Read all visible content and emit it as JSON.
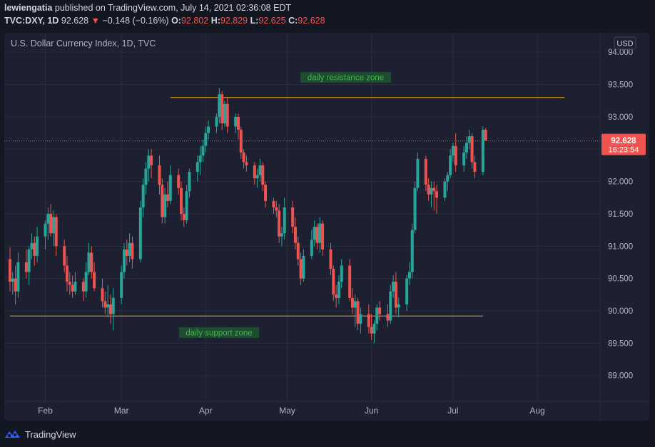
{
  "header": {
    "user": "lewiengatia",
    "published_text": "published on TradingView.com, July 14, 2021 02:36:08 EDT",
    "symbol": "TVC:DXY, 1D",
    "last": "92.628",
    "change": "−0.148 (−0.16%)",
    "o_label": "O:",
    "o_value": "92.802",
    "h_label": "H:",
    "h_value": "92.829",
    "l_label": "L:",
    "l_value": "92.625",
    "c_label": "C:",
    "c_value": "92.628"
  },
  "footer": {
    "brand": "TradingView",
    "logo_icon": "tradingview-logo-icon"
  },
  "colors": {
    "background": "#131722",
    "pane": "#1c2030",
    "grid": "#2a2e39",
    "up": "#26a69a",
    "down": "#ef5350",
    "level_line": "#f7a525",
    "zone_label_bg": "#1b4d2e",
    "zone_label_text": "#4caf50"
  },
  "chart_data": {
    "type": "candlestick",
    "title": "U.S. Dollar Currency Index, 1D, TVC",
    "currency": "USD",
    "y_ticks": [
      "94.000",
      "93.500",
      "93.000",
      "92.500",
      "92.000",
      "91.500",
      "91.000",
      "90.500",
      "90.000",
      "89.500",
      "89.000"
    ],
    "x_ticks": [
      {
        "label": "Feb",
        "date": "2021-02-01"
      },
      {
        "label": "Mar",
        "date": "2021-03-01"
      },
      {
        "label": "Apr",
        "date": "2021-04-01"
      },
      {
        "label": "May",
        "date": "2021-05-01"
      },
      {
        "label": "Jun",
        "date": "2021-06-01"
      },
      {
        "label": "Jul",
        "date": "2021-07-01"
      },
      {
        "label": "Aug",
        "date": "2021-08-01"
      }
    ],
    "ylim": [
      88.6,
      94.3
    ],
    "xlim": [
      "2021-01-19",
      "2021-08-22"
    ],
    "last_price": {
      "value": 92.628,
      "label": "92.628",
      "countdown": "16:23:54"
    },
    "resistance": {
      "label": "daily resistance zone",
      "value": 93.3,
      "from": "2021-03-19",
      "to": "2021-08-11"
    },
    "support": {
      "label": "daily support zone",
      "value": 89.92,
      "from": "2021-01-19",
      "to": "2021-07-12"
    },
    "candles": [
      {
        "d": "2021-01-19",
        "o": 90.8,
        "h": 90.98,
        "l": 90.3,
        "c": 90.45
      },
      {
        "d": "2021-01-20",
        "o": 90.45,
        "h": 90.6,
        "l": 90.25,
        "c": 90.5
      },
      {
        "d": "2021-01-21",
        "o": 90.5,
        "h": 90.7,
        "l": 90.1,
        "c": 90.3
      },
      {
        "d": "2021-01-22",
        "o": 90.3,
        "h": 90.9,
        "l": 90.2,
        "c": 90.75
      },
      {
        "d": "2021-01-25",
        "o": 90.75,
        "h": 90.95,
        "l": 90.5,
        "c": 90.6
      },
      {
        "d": "2021-01-26",
        "o": 90.6,
        "h": 91.0,
        "l": 90.4,
        "c": 90.95
      },
      {
        "d": "2021-01-27",
        "o": 90.95,
        "h": 91.2,
        "l": 90.8,
        "c": 91.05
      },
      {
        "d": "2021-01-28",
        "o": 91.05,
        "h": 91.15,
        "l": 90.7,
        "c": 90.85
      },
      {
        "d": "2021-01-29",
        "o": 90.85,
        "h": 91.3,
        "l": 90.75,
        "c": 91.15
      },
      {
        "d": "2021-02-01",
        "o": 91.15,
        "h": 91.4,
        "l": 90.95,
        "c": 91.35
      },
      {
        "d": "2021-02-02",
        "o": 91.35,
        "h": 91.6,
        "l": 91.1,
        "c": 91.5
      },
      {
        "d": "2021-02-03",
        "o": 91.5,
        "h": 91.65,
        "l": 91.15,
        "c": 91.2
      },
      {
        "d": "2021-02-04",
        "o": 91.2,
        "h": 91.55,
        "l": 91.0,
        "c": 91.45
      },
      {
        "d": "2021-02-05",
        "o": 91.45,
        "h": 91.5,
        "l": 90.85,
        "c": 91.0
      },
      {
        "d": "2021-02-08",
        "o": 91.0,
        "h": 91.1,
        "l": 90.6,
        "c": 90.7
      },
      {
        "d": "2021-02-09",
        "o": 90.7,
        "h": 90.85,
        "l": 90.3,
        "c": 90.45
      },
      {
        "d": "2021-02-10",
        "o": 90.45,
        "h": 90.6,
        "l": 90.25,
        "c": 90.4
      },
      {
        "d": "2021-02-11",
        "o": 90.4,
        "h": 90.55,
        "l": 90.2,
        "c": 90.3
      },
      {
        "d": "2021-02-12",
        "o": 90.3,
        "h": 90.6,
        "l": 90.25,
        "c": 90.45
      },
      {
        "d": "2021-02-15",
        "o": 90.45,
        "h": 90.5,
        "l": 90.15,
        "c": 90.3
      },
      {
        "d": "2021-02-16",
        "o": 90.3,
        "h": 90.75,
        "l": 90.2,
        "c": 90.6
      },
      {
        "d": "2021-02-17",
        "o": 90.6,
        "h": 91.05,
        "l": 90.55,
        "c": 90.9
      },
      {
        "d": "2021-02-18",
        "o": 90.9,
        "h": 91.0,
        "l": 90.5,
        "c": 90.6
      },
      {
        "d": "2021-02-19",
        "o": 90.6,
        "h": 90.75,
        "l": 90.3,
        "c": 90.35
      },
      {
        "d": "2021-02-22",
        "o": 90.35,
        "h": 90.5,
        "l": 90.05,
        "c": 90.15
      },
      {
        "d": "2021-02-23",
        "o": 90.15,
        "h": 90.3,
        "l": 89.95,
        "c": 90.05
      },
      {
        "d": "2021-02-24",
        "o": 90.05,
        "h": 90.4,
        "l": 89.9,
        "c": 90.1
      },
      {
        "d": "2021-02-25",
        "o": 90.1,
        "h": 90.25,
        "l": 89.8,
        "c": 89.95
      },
      {
        "d": "2021-02-26",
        "o": 89.95,
        "h": 90.35,
        "l": 89.7,
        "c": 90.2
      },
      {
        "d": "2021-03-01",
        "o": 90.2,
        "h": 90.7,
        "l": 90.1,
        "c": 90.6
      },
      {
        "d": "2021-03-02",
        "o": 90.6,
        "h": 91.05,
        "l": 90.5,
        "c": 90.95
      },
      {
        "d": "2021-03-03",
        "o": 90.95,
        "h": 91.1,
        "l": 90.7,
        "c": 90.85
      },
      {
        "d": "2021-03-04",
        "o": 90.85,
        "h": 91.2,
        "l": 90.75,
        "c": 91.05
      },
      {
        "d": "2021-03-05",
        "o": 91.05,
        "h": 91.15,
        "l": 90.65,
        "c": 90.8
      },
      {
        "d": "2021-03-08",
        "o": 90.8,
        "h": 91.7,
        "l": 90.75,
        "c": 91.6
      },
      {
        "d": "2021-03-09",
        "o": 91.6,
        "h": 92.05,
        "l": 91.45,
        "c": 91.95
      },
      {
        "d": "2021-03-10",
        "o": 91.95,
        "h": 92.3,
        "l": 91.8,
        "c": 92.2
      },
      {
        "d": "2021-03-11",
        "o": 92.2,
        "h": 92.5,
        "l": 92.0,
        "c": 92.4
      },
      {
        "d": "2021-03-12",
        "o": 92.4,
        "h": 92.5,
        "l": 92.05,
        "c": 92.25
      },
      {
        "d": "2021-03-15",
        "o": 92.25,
        "h": 92.4,
        "l": 91.8,
        "c": 91.95
      },
      {
        "d": "2021-03-16",
        "o": 91.95,
        "h": 92.05,
        "l": 91.35,
        "c": 91.45
      },
      {
        "d": "2021-03-17",
        "o": 91.45,
        "h": 91.9,
        "l": 91.35,
        "c": 91.8
      },
      {
        "d": "2021-03-18",
        "o": 91.8,
        "h": 92.0,
        "l": 91.6,
        "c": 91.7
      },
      {
        "d": "2021-03-19",
        "o": 91.7,
        "h": 92.25,
        "l": 91.65,
        "c": 92.1
      },
      {
        "d": "2021-03-22",
        "o": 92.1,
        "h": 92.2,
        "l": 91.8,
        "c": 91.9
      },
      {
        "d": "2021-03-23",
        "o": 91.9,
        "h": 92.0,
        "l": 91.4,
        "c": 91.5
      },
      {
        "d": "2021-03-24",
        "o": 91.5,
        "h": 91.6,
        "l": 91.3,
        "c": 91.4
      },
      {
        "d": "2021-03-25",
        "o": 91.4,
        "h": 91.95,
        "l": 91.35,
        "c": 91.85
      },
      {
        "d": "2021-03-26",
        "o": 91.85,
        "h": 92.2,
        "l": 91.75,
        "c": 92.15
      },
      {
        "d": "2021-03-29",
        "o": 92.15,
        "h": 92.4,
        "l": 92.0,
        "c": 92.3
      },
      {
        "d": "2021-03-30",
        "o": 92.3,
        "h": 92.55,
        "l": 92.1,
        "c": 92.4
      },
      {
        "d": "2021-03-31",
        "o": 92.4,
        "h": 92.65,
        "l": 92.3,
        "c": 92.55
      },
      {
        "d": "2021-04-01",
        "o": 92.55,
        "h": 92.85,
        "l": 92.45,
        "c": 92.75
      },
      {
        "d": "2021-04-02",
        "o": 92.75,
        "h": 92.95,
        "l": 92.65,
        "c": 92.85
      },
      {
        "d": "2021-04-05",
        "o": 92.85,
        "h": 93.05,
        "l": 92.75,
        "c": 93.0
      },
      {
        "d": "2021-04-06",
        "o": 93.0,
        "h": 93.45,
        "l": 92.9,
        "c": 93.35
      },
      {
        "d": "2021-04-07",
        "o": 93.35,
        "h": 93.4,
        "l": 92.8,
        "c": 92.9
      },
      {
        "d": "2021-04-08",
        "o": 92.9,
        "h": 93.25,
        "l": 92.85,
        "c": 93.2
      },
      {
        "d": "2021-04-09",
        "o": 93.2,
        "h": 93.3,
        "l": 92.75,
        "c": 92.85
      },
      {
        "d": "2021-04-12",
        "o": 92.85,
        "h": 93.05,
        "l": 92.75,
        "c": 93.0
      },
      {
        "d": "2021-04-13",
        "o": 93.0,
        "h": 93.05,
        "l": 92.65,
        "c": 92.8
      },
      {
        "d": "2021-04-14",
        "o": 92.8,
        "h": 92.85,
        "l": 92.35,
        "c": 92.45
      },
      {
        "d": "2021-04-15",
        "o": 92.45,
        "h": 92.5,
        "l": 92.2,
        "c": 92.3
      },
      {
        "d": "2021-04-16",
        "o": 92.3,
        "h": 92.4,
        "l": 92.15,
        "c": 92.25
      },
      {
        "d": "2021-04-19",
        "o": 92.25,
        "h": 92.3,
        "l": 91.95,
        "c": 92.05
      },
      {
        "d": "2021-04-20",
        "o": 92.05,
        "h": 92.2,
        "l": 91.9,
        "c": 92.1
      },
      {
        "d": "2021-04-21",
        "o": 92.1,
        "h": 92.35,
        "l": 92.0,
        "c": 92.25
      },
      {
        "d": "2021-04-22",
        "o": 92.25,
        "h": 92.3,
        "l": 91.85,
        "c": 91.95
      },
      {
        "d": "2021-04-23",
        "o": 91.95,
        "h": 92.0,
        "l": 91.6,
        "c": 91.7
      },
      {
        "d": "2021-04-26",
        "o": 91.7,
        "h": 91.75,
        "l": 91.5,
        "c": 91.6
      },
      {
        "d": "2021-04-27",
        "o": 91.6,
        "h": 91.7,
        "l": 91.45,
        "c": 91.55
      },
      {
        "d": "2021-04-28",
        "o": 91.55,
        "h": 91.65,
        "l": 91.05,
        "c": 91.15
      },
      {
        "d": "2021-04-29",
        "o": 91.15,
        "h": 91.3,
        "l": 91.0,
        "c": 91.2
      },
      {
        "d": "2021-04-30",
        "o": 91.2,
        "h": 91.75,
        "l": 91.1,
        "c": 91.6
      },
      {
        "d": "2021-05-03",
        "o": 91.6,
        "h": 91.7,
        "l": 91.2,
        "c": 91.3
      },
      {
        "d": "2021-05-04",
        "o": 91.3,
        "h": 91.45,
        "l": 90.95,
        "c": 91.05
      },
      {
        "d": "2021-05-05",
        "o": 91.05,
        "h": 91.15,
        "l": 90.7,
        "c": 90.8
      },
      {
        "d": "2021-05-06",
        "o": 90.8,
        "h": 90.9,
        "l": 90.4,
        "c": 90.5
      },
      {
        "d": "2021-05-07",
        "o": 90.5,
        "h": 90.95,
        "l": 90.45,
        "c": 90.85
      },
      {
        "d": "2021-05-10",
        "o": 90.85,
        "h": 91.25,
        "l": 90.8,
        "c": 91.1
      },
      {
        "d": "2021-05-11",
        "o": 91.1,
        "h": 91.4,
        "l": 91.0,
        "c": 91.3
      },
      {
        "d": "2021-05-12",
        "o": 91.3,
        "h": 91.35,
        "l": 90.95,
        "c": 91.05
      },
      {
        "d": "2021-05-13",
        "o": 91.05,
        "h": 91.45,
        "l": 90.9,
        "c": 91.35
      },
      {
        "d": "2021-05-14",
        "o": 91.35,
        "h": 91.4,
        "l": 90.85,
        "c": 90.95
      },
      {
        "d": "2021-05-17",
        "o": 90.95,
        "h": 91.05,
        "l": 90.55,
        "c": 90.65
      },
      {
        "d": "2021-05-18",
        "o": 90.65,
        "h": 90.7,
        "l": 90.15,
        "c": 90.25
      },
      {
        "d": "2021-05-19",
        "o": 90.25,
        "h": 90.4,
        "l": 90.05,
        "c": 90.2
      },
      {
        "d": "2021-05-20",
        "o": 90.2,
        "h": 90.55,
        "l": 90.1,
        "c": 90.45
      },
      {
        "d": "2021-05-21",
        "o": 90.45,
        "h": 90.8,
        "l": 90.35,
        "c": 90.7
      },
      {
        "d": "2021-05-24",
        "o": 90.7,
        "h": 90.8,
        "l": 90.15,
        "c": 90.2
      },
      {
        "d": "2021-05-25",
        "o": 90.2,
        "h": 90.35,
        "l": 89.95,
        "c": 90.05
      },
      {
        "d": "2021-05-26",
        "o": 90.05,
        "h": 90.25,
        "l": 89.75,
        "c": 90.15
      },
      {
        "d": "2021-05-27",
        "o": 90.15,
        "h": 90.2,
        "l": 89.7,
        "c": 89.8
      },
      {
        "d": "2021-05-28",
        "o": 89.8,
        "h": 90.05,
        "l": 89.65,
        "c": 89.95
      },
      {
        "d": "2021-05-31",
        "o": 89.95,
        "h": 90.1,
        "l": 89.65,
        "c": 89.75
      },
      {
        "d": "2021-06-01",
        "o": 89.75,
        "h": 89.95,
        "l": 89.55,
        "c": 89.65
      },
      {
        "d": "2021-06-02",
        "o": 89.65,
        "h": 89.85,
        "l": 89.5,
        "c": 89.8
      },
      {
        "d": "2021-06-03",
        "o": 89.8,
        "h": 90.1,
        "l": 89.7,
        "c": 90.05
      },
      {
        "d": "2021-06-04",
        "o": 90.05,
        "h": 90.15,
        "l": 89.85,
        "c": 89.95
      },
      {
        "d": "2021-06-07",
        "o": 89.95,
        "h": 90.1,
        "l": 89.75,
        "c": 89.85
      },
      {
        "d": "2021-06-08",
        "o": 89.85,
        "h": 90.4,
        "l": 89.8,
        "c": 90.3
      },
      {
        "d": "2021-06-09",
        "o": 90.3,
        "h": 90.55,
        "l": 90.2,
        "c": 90.45
      },
      {
        "d": "2021-06-10",
        "o": 90.45,
        "h": 90.6,
        "l": 89.95,
        "c": 90.05
      },
      {
        "d": "2021-06-11",
        "o": 90.05,
        "h": 90.2,
        "l": 89.9,
        "c": 90.1
      },
      {
        "d": "2021-06-14",
        "o": 90.1,
        "h": 90.55,
        "l": 90.0,
        "c": 90.5
      },
      {
        "d": "2021-06-15",
        "o": 90.5,
        "h": 90.75,
        "l": 90.4,
        "c": 90.6
      },
      {
        "d": "2021-06-16",
        "o": 90.6,
        "h": 91.35,
        "l": 90.5,
        "c": 91.25
      },
      {
        "d": "2021-06-17",
        "o": 91.25,
        "h": 92.0,
        "l": 91.2,
        "c": 91.9
      },
      {
        "d": "2021-06-18",
        "o": 91.9,
        "h": 92.45,
        "l": 91.85,
        "c": 92.35
      },
      {
        "d": "2021-06-21",
        "o": 92.35,
        "h": 92.4,
        "l": 91.85,
        "c": 91.95
      },
      {
        "d": "2021-06-22",
        "o": 91.95,
        "h": 92.05,
        "l": 91.7,
        "c": 91.8
      },
      {
        "d": "2021-06-23",
        "o": 91.8,
        "h": 92.0,
        "l": 91.6,
        "c": 91.9
      },
      {
        "d": "2021-06-24",
        "o": 91.9,
        "h": 92.0,
        "l": 91.55,
        "c": 91.85
      },
      {
        "d": "2021-06-25",
        "o": 91.85,
        "h": 91.95,
        "l": 91.5,
        "c": 91.75
      },
      {
        "d": "2021-06-28",
        "o": 91.75,
        "h": 92.05,
        "l": 91.7,
        "c": 92.0
      },
      {
        "d": "2021-06-29",
        "o": 92.0,
        "h": 92.15,
        "l": 91.85,
        "c": 92.1
      },
      {
        "d": "2021-06-30",
        "o": 92.1,
        "h": 92.5,
        "l": 92.05,
        "c": 92.4
      },
      {
        "d": "2021-07-01",
        "o": 92.4,
        "h": 92.6,
        "l": 92.3,
        "c": 92.55
      },
      {
        "d": "2021-07-02",
        "o": 92.55,
        "h": 92.75,
        "l": 92.15,
        "c": 92.25
      },
      {
        "d": "2021-07-05",
        "o": 92.25,
        "h": 92.55,
        "l": 92.15,
        "c": 92.45
      },
      {
        "d": "2021-07-06",
        "o": 92.45,
        "h": 92.7,
        "l": 92.35,
        "c": 92.6
      },
      {
        "d": "2021-07-07",
        "o": 92.6,
        "h": 92.8,
        "l": 92.5,
        "c": 92.7
      },
      {
        "d": "2021-07-08",
        "o": 92.7,
        "h": 92.75,
        "l": 92.2,
        "c": 92.3
      },
      {
        "d": "2021-07-09",
        "o": 92.3,
        "h": 92.4,
        "l": 92.05,
        "c": 92.15
      },
      {
        "d": "2021-07-12",
        "o": 92.15,
        "h": 92.85,
        "l": 92.1,
        "c": 92.8
      },
      {
        "d": "2021-07-13",
        "o": 92.8,
        "h": 92.83,
        "l": 92.63,
        "c": 92.63
      }
    ]
  }
}
